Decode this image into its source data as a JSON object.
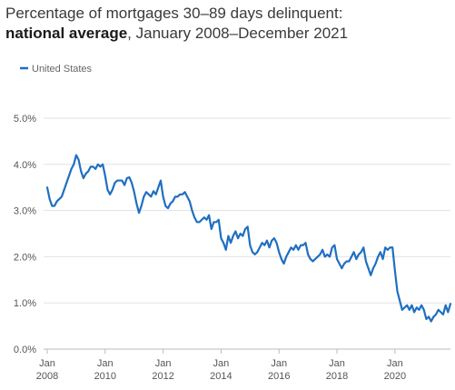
{
  "title": {
    "line1": "Percentage of mortgages 30–89 days delinquent:",
    "bold": "national average",
    "rest": ", January 2008–December 2021"
  },
  "colors": {
    "series": "#1f6fc1",
    "grid": "#e2e2e2",
    "axis": "#bbbbbb"
  },
  "chart_data": {
    "type": "line",
    "title": "Percentage of mortgages 30–89 days delinquent: national average, January 2008–December 2021",
    "xlabel": "",
    "ylabel": "",
    "ylim": [
      0,
      5
    ],
    "xlim": [
      "2008-01",
      "2021-12"
    ],
    "y_ticks": [
      "0.0%",
      "1.0%",
      "2.0%",
      "3.0%",
      "4.0%",
      "5.0%"
    ],
    "x_ticks": [
      {
        "month": "Jan",
        "year": "2008"
      },
      {
        "month": "Jan",
        "year": "2010"
      },
      {
        "month": "Jan",
        "year": "2012"
      },
      {
        "month": "Jan",
        "year": "2014"
      },
      {
        "month": "Jan",
        "year": "2016"
      },
      {
        "month": "Jan",
        "year": "2018"
      },
      {
        "month": "Jan",
        "year": "2020"
      }
    ],
    "grid": "horizontal",
    "legend": "top-left",
    "series": [
      {
        "name": "United States",
        "start": "2008-01",
        "frequency": "monthly",
        "values": [
          3.5,
          3.25,
          3.1,
          3.1,
          3.2,
          3.25,
          3.3,
          3.45,
          3.6,
          3.75,
          3.9,
          4.0,
          4.2,
          4.1,
          3.85,
          3.7,
          3.8,
          3.85,
          3.95,
          3.95,
          3.9,
          4.0,
          3.95,
          4.0,
          3.75,
          3.45,
          3.35,
          3.45,
          3.6,
          3.65,
          3.65,
          3.65,
          3.55,
          3.7,
          3.72,
          3.6,
          3.4,
          3.15,
          2.95,
          3.1,
          3.3,
          3.4,
          3.35,
          3.3,
          3.42,
          3.35,
          3.5,
          3.65,
          3.3,
          3.1,
          3.05,
          3.15,
          3.2,
          3.3,
          3.3,
          3.35,
          3.35,
          3.4,
          3.3,
          3.2,
          3.0,
          2.85,
          2.75,
          2.75,
          2.8,
          2.85,
          2.8,
          2.9,
          2.6,
          2.75,
          2.75,
          2.8,
          2.4,
          2.3,
          2.15,
          2.45,
          2.3,
          2.45,
          2.55,
          2.4,
          2.5,
          2.45,
          2.6,
          2.65,
          2.25,
          2.1,
          2.05,
          2.1,
          2.2,
          2.3,
          2.25,
          2.35,
          2.2,
          2.35,
          2.4,
          2.3,
          2.1,
          1.95,
          1.85,
          2.0,
          2.1,
          2.2,
          2.15,
          2.25,
          2.15,
          2.25,
          2.25,
          2.3,
          2.05,
          1.95,
          1.9,
          1.95,
          2.0,
          2.05,
          2.15,
          2.0,
          2.05,
          2.0,
          2.2,
          2.25,
          1.95,
          1.85,
          1.75,
          1.85,
          1.9,
          1.9,
          2.0,
          2.1,
          1.95,
          2.05,
          2.1,
          2.2,
          1.9,
          1.75,
          1.6,
          1.75,
          1.85,
          2.0,
          2.1,
          1.95,
          2.2,
          2.15,
          2.2,
          2.2,
          1.7,
          1.25,
          1.05,
          0.85,
          0.9,
          0.95,
          0.85,
          0.95,
          0.8,
          0.9,
          0.85,
          0.95,
          0.85,
          0.65,
          0.7,
          0.6,
          0.7,
          0.75,
          0.85,
          0.8,
          0.75,
          0.95,
          0.8,
          0.98
        ]
      }
    ]
  }
}
